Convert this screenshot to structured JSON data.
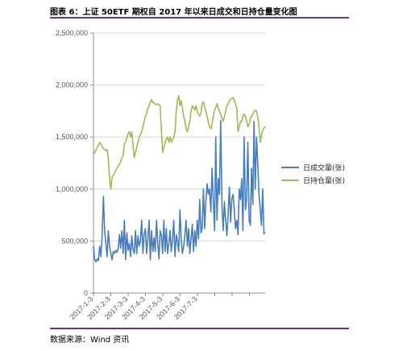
{
  "header": {
    "title": "图表 6：上证 50ETF 期权自 2017 年以来日成交和日持仓量变化图"
  },
  "footer": {
    "source": "数据来源：Wind 资讯"
  },
  "chart_data": {
    "type": "line",
    "title": "",
    "xlabel": "",
    "ylabel": "",
    "ylim": [
      0,
      2500000
    ],
    "yticks": [
      0,
      500000,
      1000000,
      1500000,
      2000000,
      2500000
    ],
    "ytick_labels": [
      "0",
      "500,000",
      "1,000,000",
      "1,500,000",
      "2,000,000",
      "2,500,000"
    ],
    "xtick_labels": [
      "2017-1-3",
      "2017-2-3",
      "2017-3-3",
      "2017-4-3",
      "2017-5-3",
      "2017-6-3",
      "2017-7-3"
    ],
    "n_points": 140,
    "grid": "horizontal",
    "legend_position": "right",
    "series": [
      {
        "name": "日成交量(张)",
        "color": "#4a7ebb",
        "values": [
          450000,
          320000,
          300000,
          330000,
          310000,
          450000,
          350000,
          550000,
          930000,
          600000,
          480000,
          350000,
          600000,
          450000,
          380000,
          320000,
          400000,
          380000,
          410000,
          390000,
          420000,
          560000,
          430000,
          600000,
          380000,
          700000,
          320000,
          580000,
          410000,
          480000,
          350000,
          550000,
          420000,
          380000,
          600000,
          380000,
          550000,
          450000,
          500000,
          700000,
          380000,
          560000,
          620000,
          380000,
          520000,
          700000,
          320000,
          600000,
          400000,
          530000,
          400000,
          700000,
          480000,
          330000,
          600000,
          550000,
          380000,
          700000,
          400000,
          620000,
          380000,
          480000,
          600000,
          400000,
          520000,
          700000,
          350000,
          560000,
          500000,
          400000,
          800000,
          520000,
          380000,
          450000,
          560000,
          700000,
          450000,
          620000,
          380000,
          520000,
          660000,
          400000,
          600000,
          450000,
          700000,
          520000,
          900000,
          580000,
          620000,
          1000000,
          620000,
          880000,
          1050000,
          950000,
          1000000,
          780000,
          1200000,
          900000,
          600000,
          1500000,
          700000,
          1100000,
          950000,
          1660000,
          850000,
          600000,
          880000,
          700000,
          550000,
          750000,
          1020000,
          680000,
          900000,
          950000,
          800000,
          620000,
          700000,
          560000,
          1000000,
          900000,
          1100000,
          600000,
          1500000,
          800000,
          900000,
          1450000,
          700000,
          650000,
          1200000,
          850000,
          1650000,
          1000000,
          1500000,
          1250000,
          950000,
          800000,
          650000,
          1000000,
          570000,
          580000
        ]
      },
      {
        "name": "日持仓量(张)",
        "color": "#9bbb59",
        "values": [
          1330000,
          1350000,
          1380000,
          1400000,
          1420000,
          1450000,
          1430000,
          1410000,
          1390000,
          1380000,
          1370000,
          1380000,
          1300000,
          1100000,
          1000000,
          1120000,
          1130000,
          1150000,
          1180000,
          1200000,
          1220000,
          1240000,
          1260000,
          1300000,
          1320000,
          1440000,
          1450000,
          1500000,
          1530000,
          1550000,
          1500000,
          1550000,
          1420000,
          1300000,
          1350000,
          1400000,
          1450000,
          1500000,
          1520000,
          1550000,
          1600000,
          1650000,
          1700000,
          1720000,
          1780000,
          1800000,
          1840000,
          1860000,
          1830000,
          1830000,
          1820000,
          1810000,
          1820000,
          1810000,
          1800000,
          1550000,
          1350000,
          1400000,
          1450000,
          1480000,
          1500000,
          1450000,
          1500000,
          1450000,
          1480000,
          1500000,
          1550000,
          1750000,
          1850000,
          1900000,
          1800000,
          1850000,
          1780000,
          1700000,
          1650000,
          1580000,
          1550000,
          1600000,
          1650000,
          1750000,
          1800000,
          1780000,
          1760000,
          1800000,
          1750000,
          1720000,
          1700000,
          1730000,
          1820000,
          1840000,
          1790000,
          1750000,
          1700000,
          1640000,
          1600000,
          1580000,
          1620000,
          1700000,
          1760000,
          1780000,
          1820000,
          1780000,
          1750000,
          1720000,
          1680000,
          1650000,
          1700000,
          1750000,
          1800000,
          1820000,
          1850000,
          1860000,
          1870000,
          1880000,
          1850000,
          1820000,
          1780000,
          1550000,
          1600000,
          1650000,
          1650000,
          1700000,
          1720000,
          1700000,
          1650000,
          1600000,
          1620000,
          1680000,
          1700000,
          1720000,
          1740000,
          1760000,
          1750000,
          1700000,
          1600000,
          1450000,
          1520000,
          1560000,
          1590000,
          1600000
        ]
      }
    ]
  }
}
